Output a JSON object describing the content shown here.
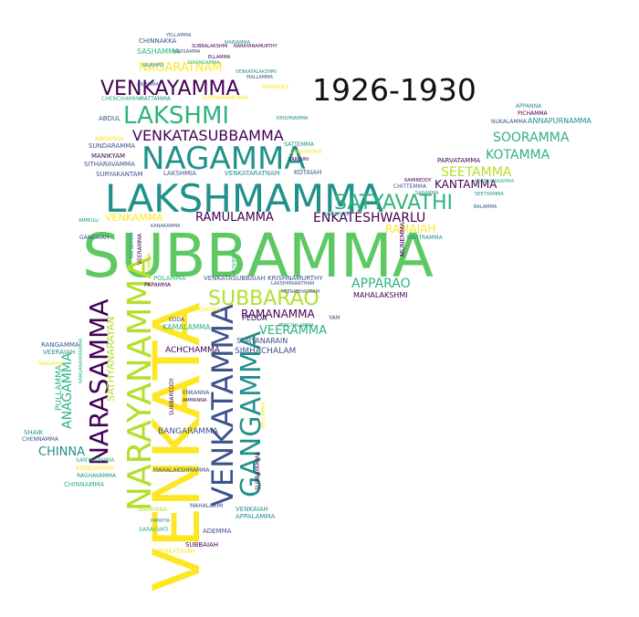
{
  "title": "1926-1930",
  "palette": {
    "dark_purple": "#440154",
    "indigo": "#3b528b",
    "teal": "#21918c",
    "green": "#5ec962",
    "yellow": "#fde725",
    "lime": "#b5de2b",
    "aqua": "#2fb47c"
  },
  "words": [
    "SUBBAMMA",
    "VENKATA",
    "LAKSHMAMMA",
    "NARAYANAMMA",
    "VENKATAMMA",
    "NAGAMMA",
    "GANGAMMA",
    "NARASAMMA",
    "SATYAVATHI",
    "LAKSHMI",
    "VENKAYAMMA",
    "SUBBARAO",
    "VENKATASUBBAMMA",
    "NAGARATNAM",
    "RAMULAMMA",
    "ENKATESHWARLU",
    "RAMANAMMA",
    "APPARAO",
    "SOORAMMA",
    "SEETAMMA",
    "KOTAMMA",
    "KANTAMMA",
    "VEERAMMA",
    "RAMAIAH",
    "CHINNA",
    "ANAGAMMA",
    "SATHYANARAYAN",
    "VENKAMMA",
    "PULLAMMA",
    "ACHCHAMMA",
    "SIMHACHALAM",
    "BANGARAMMA",
    "SURYANARAIN",
    "KAMALAMMA",
    "MAHALAKSHMI",
    "SATTEMMA",
    "KOTAIAH",
    "SURYAKANTAM",
    "VENKATARATNAM",
    "LAKSHMIA",
    "MANIKYAM",
    "SITHARAVAMMA",
    "SUNDARAMMA",
    "ABDUL",
    "CHENCHAMMA",
    "RATTAMMA",
    "SURYANARAYANA",
    "SASHAMMA",
    "CHINNAKKA",
    "RAMAKKA",
    "ANNAPURNAMMA",
    "NUKALAMMA",
    "PARVATAMMA",
    "CHITTEMMA",
    "APPANNA",
    "PICHAMMA",
    "RANGAMMA",
    "VEERAIAH",
    "NAGAIAH",
    "SHAIK",
    "CHENNAMMA",
    "KONDAMMA",
    "RAGHAVAMMA",
    "CHINNAMMA",
    "SANYASAMMA",
    "ADEMMA",
    "SUBBAIAH",
    "VENKATAIAH",
    "SARASVATI",
    "VENKAIAH",
    "APPALAMMA",
    "MAHALAXMI",
    "NARAYANA",
    "MAHALAKSHMAMMA",
    "SUBBAYAMMA",
    "EDDA",
    "PEDDA",
    "YAM",
    "POLAMMA",
    "PAPAMMA",
    "GANGAIAH",
    "VENKATASUBBAIAH KRISHNAMURTHY",
    "GADIAH",
    "ENKANNA",
    "AMMANNA",
    "SUBBAREDDY",
    "MUNEMMA",
    "SAVITRAMMA",
    "RAMIREDDY",
    "SARAMMA",
    "ANKAMMA",
    "KRISHNAMMA",
    "SAROJINI",
    "LAKSHMAMMI",
    "NAGAMANI",
    "AMMULU",
    "KANAKAMMA",
    "SEETHAMMA",
    "BALAMMA",
    "PAPAYYA",
    "RANGANAYAKAMMA",
    "VEERABHADRAM",
    "GOVINDAMMA",
    "MALLAMMA",
    "RATNAMMA",
    "ANJAMMA",
    "SUSHEELA",
    "RAJAMMA",
    "SUBBALAKSHMI",
    "VENKATALAKSHMI",
    "YELLAMMA",
    "NARAYANAMURTHY",
    "MARIAMMA",
    "ELLAMMA",
    "SIVAMMA",
    "LAKSHMIKANTHAM",
    "PENCHALAMMA",
    "VEERAMMA",
    "OBULAMMA",
    "NARSAMMA",
    "KOTESWARAMMA",
    "RAMAMMA"
  ]
}
